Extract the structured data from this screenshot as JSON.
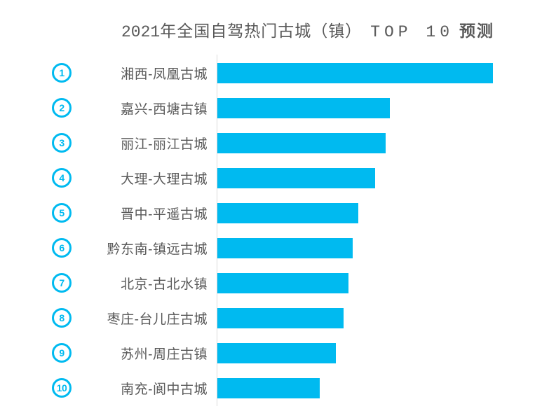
{
  "title": {
    "full": "2021年全国自驾热门古城（镇）TOP 10 预测",
    "part_year": "2021",
    "part_cn1": "年全国自驾热门古城（镇）",
    "part_latin": "TOP 10",
    "part_cn2": "预测",
    "color": "#595959"
  },
  "chart_data": {
    "type": "bar",
    "orientation": "horizontal",
    "title": "2021年全国自驾热门古城（镇）TOP 10 预测",
    "ranks": [
      "1",
      "2",
      "3",
      "4",
      "5",
      "6",
      "7",
      "8",
      "9",
      "10"
    ],
    "categories": [
      "湘西-凤凰古城",
      "嘉兴-西塘古镇",
      "丽江-丽江古城",
      "大理-大理古城",
      "晋中-平遥古城",
      "黔东南-镇远古城",
      "北京-古北水镇",
      "枣庄-台儿庄古城",
      "苏州-周庄古镇",
      "南充-阆中古城"
    ],
    "values": [
      100,
      62.6,
      61.1,
      57.3,
      51.1,
      49.1,
      47.6,
      45.8,
      43.0,
      37.2
    ],
    "values_note": "relative popularity index estimated from bar lengths (% of longest bar); no numeric data labels are shown in the chart",
    "xlabel": "",
    "ylabel": "",
    "xlim": [
      0,
      117.8
    ],
    "grid": false,
    "legend": false,
    "bar_color": "#00baf0",
    "rank_badge_color": "#00baf0",
    "label_color": "#595959",
    "axis_line_color": "#d9d9d9"
  }
}
